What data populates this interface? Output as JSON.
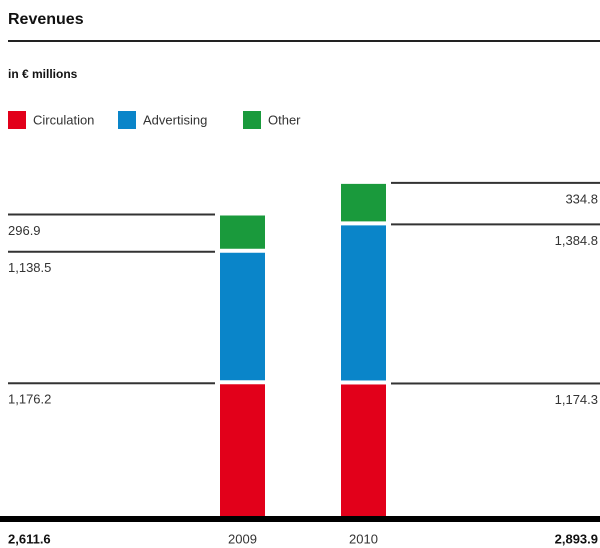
{
  "chart_data": {
    "type": "stacked_bar",
    "title": "Revenues",
    "subtitle": "in € millions",
    "categories": [
      "2009",
      "2010"
    ],
    "series": [
      {
        "name": "Circulation",
        "color": "#e2001a",
        "values": [
          1176.2,
          1174.3
        ],
        "value_labels": [
          "1,176.2",
          "1,174.3"
        ]
      },
      {
        "name": "Advertising",
        "color": "#0a85c9",
        "values": [
          1138.5,
          1384.8
        ],
        "value_labels": [
          "1,138.5",
          "1,384.8"
        ]
      },
      {
        "name": "Other",
        "color": "#1a9a3c",
        "values": [
          296.9,
          334.8
        ],
        "value_labels": [
          "296.9",
          "334.8"
        ]
      }
    ],
    "totals": [
      2611.6,
      2893.9
    ],
    "total_labels": [
      "2,611.6",
      "2,893.9"
    ]
  }
}
